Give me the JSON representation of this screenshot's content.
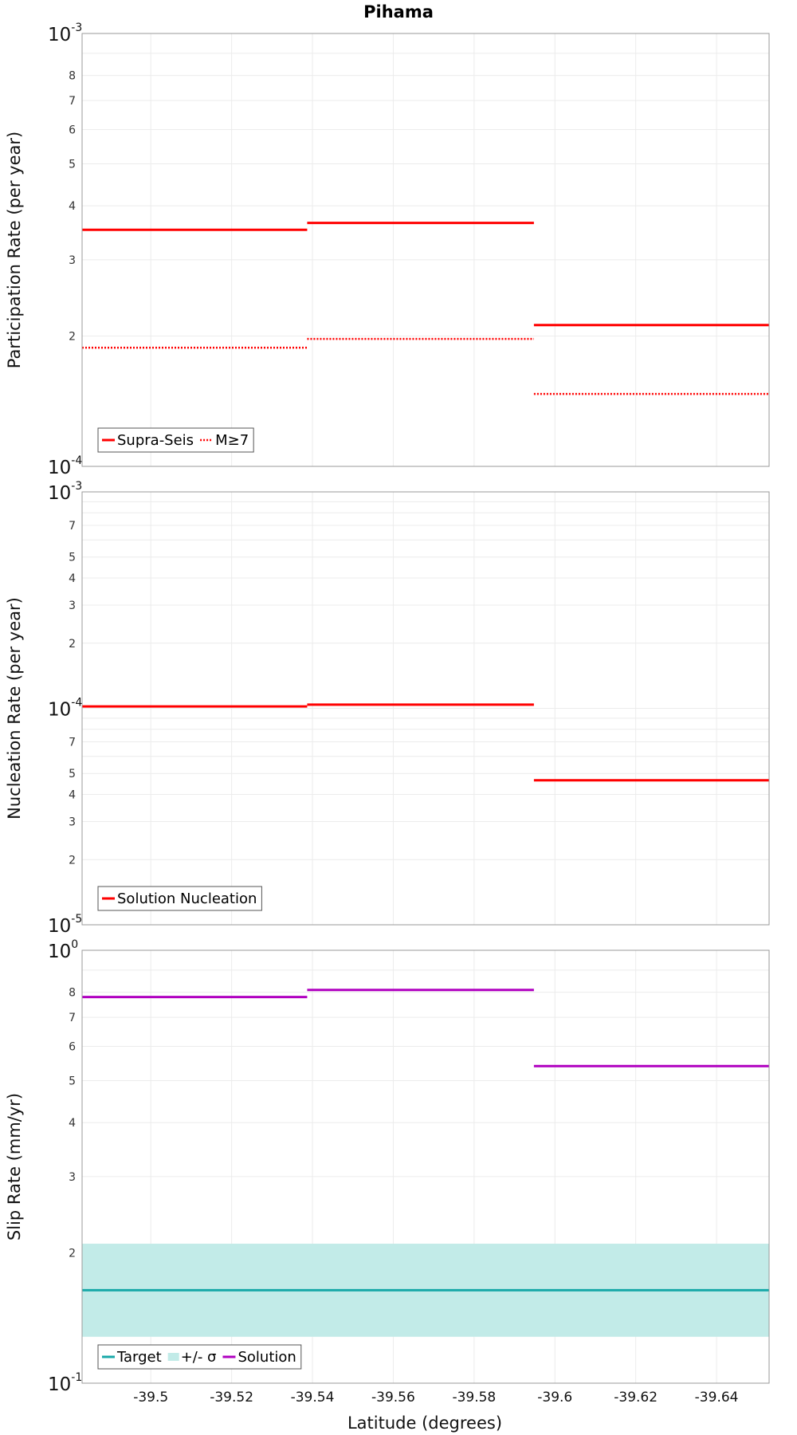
{
  "title": "Pihama",
  "xlabel": "Latitude (degrees)",
  "x_ticks": [
    "-39.5",
    "-39.52",
    "-39.54",
    "-39.56",
    "-39.58",
    "-39.6",
    "-39.62",
    "-39.64"
  ],
  "colors": {
    "solution_red": "#ff0000",
    "target_teal": "#19a9a9",
    "sigma_fill": "#c2ebe8",
    "solution_purple": "#b000c0"
  },
  "chart_data": [
    {
      "id": "participation",
      "type": "line",
      "ylabel": "Participation Rate (per year)",
      "yscale": "log",
      "ylim": [
        0.0001,
        0.001
      ],
      "xlim": [
        -39.483,
        -39.653
      ],
      "x_ticks": [
        -39.5,
        -39.52,
        -39.54,
        -39.56,
        -39.58,
        -39.6,
        -39.62,
        -39.64
      ],
      "y_major": [
        {
          "base": "10",
          "exp": "-4",
          "value": 0.0001
        },
        {
          "base": "10",
          "exp": "-3",
          "value": 0.001
        }
      ],
      "y_minor": [
        {
          "label": "2",
          "value": 0.0002
        },
        {
          "label": "3",
          "value": 0.0003
        },
        {
          "label": "4",
          "value": 0.0004
        },
        {
          "label": "5",
          "value": 0.0005
        },
        {
          "label": "6",
          "value": 0.0006
        },
        {
          "label": "7",
          "value": 0.0007
        },
        {
          "label": "8",
          "value": 0.0008
        }
      ],
      "y_grid_extra": [
        0.0009
      ],
      "series": [
        {
          "name": "Supra-Seis",
          "style": "solid",
          "color": "#ff0000",
          "segments": [
            [
              -39.483,
              -39.5387,
              0.000352
            ],
            [
              -39.5387,
              -39.5948,
              0.000365
            ],
            [
              -39.5948,
              -39.653,
              0.000212
            ]
          ]
        },
        {
          "name": "M≥7",
          "style": "dotted",
          "color": "#ff0000",
          "segments": [
            [
              -39.483,
              -39.5387,
              0.000188
            ],
            [
              -39.5387,
              -39.5948,
              0.000197
            ],
            [
              -39.5948,
              -39.653,
              0.000147
            ]
          ]
        }
      ],
      "legend_location": "bottom-left",
      "legend": [
        {
          "label": "Supra-Seis",
          "kind": "solid",
          "color": "#ff0000"
        },
        {
          "label": "M≥7",
          "kind": "dotted",
          "color": "#ff0000"
        }
      ]
    },
    {
      "id": "nucleation",
      "type": "line",
      "ylabel": "Nucleation Rate (per year)",
      "yscale": "log",
      "ylim": [
        1e-05,
        0.001
      ],
      "xlim": [
        -39.483,
        -39.653
      ],
      "x_ticks": [
        -39.5,
        -39.52,
        -39.54,
        -39.56,
        -39.58,
        -39.6,
        -39.62,
        -39.64
      ],
      "y_major": [
        {
          "base": "10",
          "exp": "-5",
          "value": 1e-05
        },
        {
          "base": "10",
          "exp": "-4",
          "value": 0.0001
        },
        {
          "base": "10",
          "exp": "-3",
          "value": 0.001
        }
      ],
      "y_minor": [
        {
          "label": "2",
          "value": 2e-05
        },
        {
          "label": "3",
          "value": 3e-05
        },
        {
          "label": "4",
          "value": 4e-05
        },
        {
          "label": "5",
          "value": 5e-05
        },
        {
          "label": "7",
          "value": 7e-05
        },
        {
          "label": "2",
          "value": 0.0002
        },
        {
          "label": "3",
          "value": 0.0003
        },
        {
          "label": "4",
          "value": 0.0004
        },
        {
          "label": "5",
          "value": 0.0005
        },
        {
          "label": "7",
          "value": 0.0007
        }
      ],
      "y_grid_extra": [
        6e-05,
        8e-05,
        9e-05,
        0.0006,
        0.0008,
        0.0009
      ],
      "series": [
        {
          "name": "Solution Nucleation",
          "style": "solid",
          "color": "#ff0000",
          "segments": [
            [
              -39.483,
              -39.5387,
              0.000102
            ],
            [
              -39.5387,
              -39.5948,
              0.000104
            ],
            [
              -39.5948,
              -39.653,
              4.65e-05
            ]
          ]
        }
      ],
      "legend_location": "bottom-left",
      "legend": [
        {
          "label": "Solution Nucleation",
          "kind": "solid",
          "color": "#ff0000"
        }
      ]
    },
    {
      "id": "slip",
      "type": "line",
      "ylabel": "Slip Rate (mm/yr)",
      "yscale": "log",
      "ylim": [
        0.1,
        1
      ],
      "xlim": [
        -39.483,
        -39.653
      ],
      "x_ticks": [
        -39.5,
        -39.52,
        -39.54,
        -39.56,
        -39.58,
        -39.6,
        -39.62,
        -39.64
      ],
      "y_major": [
        {
          "base": "10",
          "exp": "-1",
          "value": 0.1
        },
        {
          "base": "10",
          "exp": "0",
          "value": 1
        }
      ],
      "y_minor": [
        {
          "label": "2",
          "value": 0.2
        },
        {
          "label": "3",
          "value": 0.3
        },
        {
          "label": "4",
          "value": 0.4
        },
        {
          "label": "5",
          "value": 0.5
        },
        {
          "label": "6",
          "value": 0.6
        },
        {
          "label": "7",
          "value": 0.7
        },
        {
          "label": "8",
          "value": 0.8
        }
      ],
      "y_grid_extra": [
        0.9
      ],
      "band": {
        "name": "+/- σ",
        "low": 0.128,
        "high": 0.21,
        "color": "#c2ebe8"
      },
      "series": [
        {
          "name": "Target",
          "style": "solid",
          "color": "#19a9a9",
          "segments": [
            [
              -39.483,
              -39.653,
              0.164
            ]
          ]
        },
        {
          "name": "Solution",
          "style": "solid",
          "color": "#b000c0",
          "segments": [
            [
              -39.483,
              -39.5387,
              0.78
            ],
            [
              -39.5387,
              -39.5948,
              0.81
            ],
            [
              -39.5948,
              -39.653,
              0.54
            ]
          ]
        }
      ],
      "legend_location": "bottom-left",
      "legend": [
        {
          "label": "Target",
          "kind": "solid",
          "color": "#19a9a9"
        },
        {
          "label": "+/- σ",
          "kind": "band",
          "color": "#c2ebe8"
        },
        {
          "label": "Solution",
          "kind": "solid",
          "color": "#b000c0"
        }
      ]
    }
  ]
}
